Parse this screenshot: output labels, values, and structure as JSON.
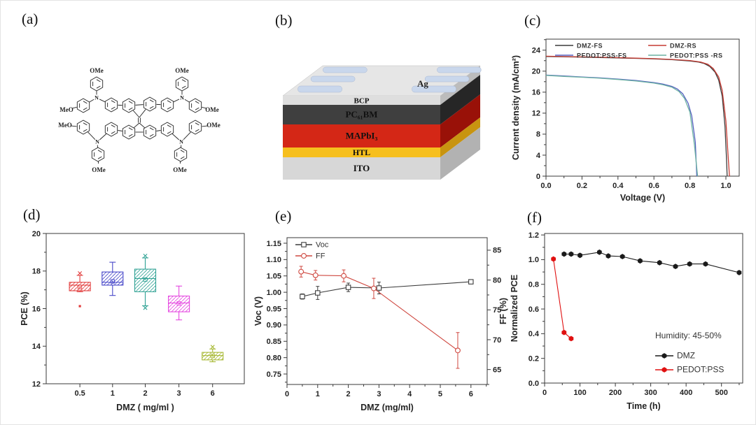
{
  "figure": {
    "panels": {
      "a": {
        "label": "(a)",
        "atom_labels": {
          "m1": "OMe",
          "m2": "MeO",
          "m3": "OMe",
          "m4": "OMe",
          "m5": "MeO",
          "m6": "OMe",
          "m7": "OMe",
          "m8": "OMe",
          "n": "N"
        }
      },
      "b": {
        "label": "(b)",
        "electrode": "Ag",
        "top_color": "#e6e6e6",
        "pad_color": "#c9d7ec",
        "layers": [
          {
            "name": "BCP",
            "color": "#dedede",
            "side": "#bcbcbc"
          },
          {
            "name": "PC₆₁BM",
            "color": "#3f3f3f",
            "side": "#262626"
          },
          {
            "name": "MAPbI₃",
            "color": "#d42716",
            "side": "#991108"
          },
          {
            "name": "HTL",
            "color": "#f6bf1e",
            "side": "#c89410"
          },
          {
            "name": "ITO",
            "color": "#d7d7d7",
            "side": "#b2b2b2"
          }
        ]
      },
      "c": {
        "label": "(c)"
      },
      "d": {
        "label": "(d)"
      },
      "e": {
        "label": "(e)"
      },
      "f": {
        "label": "(f)"
      }
    }
  },
  "chart_data": [
    {
      "id": "c",
      "type": "line",
      "xlabel": "Voltage (V)",
      "ylabel": "Current density (mA/cm²)",
      "xlim": [
        0,
        1.074
      ],
      "ylim": [
        0,
        26.1
      ],
      "xticks": [
        0,
        0.2,
        0.4,
        0.6,
        0.8,
        1.0
      ],
      "xtick_labels": [
        "0.0",
        "0.2",
        "0.4",
        "0.6",
        "0.8",
        "1.0"
      ],
      "yticks": [
        0,
        4,
        8,
        12,
        16,
        20,
        24
      ],
      "ytick_labels": [
        "0",
        "4",
        "8",
        "12",
        "16",
        "20",
        "24"
      ],
      "legend": true,
      "series": [
        {
          "name": "DMZ-FS",
          "color": "#3c3c3c",
          "points": [
            [
              0,
              22.8
            ],
            [
              0.1,
              22.75
            ],
            [
              0.2,
              22.68
            ],
            [
              0.3,
              22.6
            ],
            [
              0.4,
              22.52
            ],
            [
              0.5,
              22.44
            ],
            [
              0.6,
              22.34
            ],
            [
              0.7,
              22.18
            ],
            [
              0.8,
              21.95
            ],
            [
              0.85,
              21.72
            ],
            [
              0.88,
              21.45
            ],
            [
              0.91,
              20.9
            ],
            [
              0.94,
              19.8
            ],
            [
              0.96,
              18.3
            ],
            [
              0.98,
              15.2
            ],
            [
              0.995,
              9.5
            ],
            [
              1.003,
              3.5
            ],
            [
              1.007,
              0
            ]
          ]
        },
        {
          "name": "DMZ-RS",
          "color": "#c53a32",
          "points": [
            [
              0,
              22.85
            ],
            [
              0.1,
              22.78
            ],
            [
              0.2,
              22.72
            ],
            [
              0.3,
              22.65
            ],
            [
              0.4,
              22.57
            ],
            [
              0.5,
              22.48
            ],
            [
              0.6,
              22.38
            ],
            [
              0.7,
              22.24
            ],
            [
              0.8,
              22.02
            ],
            [
              0.86,
              21.75
            ],
            [
              0.9,
              21.3
            ],
            [
              0.93,
              20.5
            ],
            [
              0.96,
              18.9
            ],
            [
              0.98,
              16.3
            ],
            [
              1.0,
              10.5
            ],
            [
              1.012,
              4
            ],
            [
              1.02,
              0
            ]
          ]
        },
        {
          "name": "PEDOT:PSS-FS",
          "color": "#5560c0",
          "points": [
            [
              0,
              19.25
            ],
            [
              0.1,
              19.08
            ],
            [
              0.2,
              18.9
            ],
            [
              0.3,
              18.72
            ],
            [
              0.4,
              18.5
            ],
            [
              0.5,
              18.22
            ],
            [
              0.6,
              17.82
            ],
            [
              0.65,
              17.55
            ],
            [
              0.7,
              17.1
            ],
            [
              0.73,
              16.6
            ],
            [
              0.76,
              15.7
            ],
            [
              0.79,
              13.9
            ],
            [
              0.81,
              11.5
            ],
            [
              0.83,
              6.5
            ],
            [
              0.838,
              0
            ]
          ]
        },
        {
          "name": "PEDOT:PSS -RS",
          "color": "#6cb2a2",
          "points": [
            [
              0,
              19.2
            ],
            [
              0.1,
              19.0
            ],
            [
              0.2,
              18.84
            ],
            [
              0.3,
              18.65
            ],
            [
              0.4,
              18.42
            ],
            [
              0.5,
              18.12
            ],
            [
              0.6,
              17.72
            ],
            [
              0.65,
              17.42
            ],
            [
              0.7,
              16.95
            ],
            [
              0.74,
              16.1
            ],
            [
              0.77,
              14.8
            ],
            [
              0.8,
              12.2
            ],
            [
              0.825,
              6
            ],
            [
              0.843,
              0
            ]
          ]
        }
      ]
    },
    {
      "id": "d",
      "type": "box",
      "xlabel": "DMZ ( mg/ml )",
      "ylabel": "PCE (%)",
      "ylim": [
        12,
        20
      ],
      "yticks": [
        12,
        14,
        16,
        18,
        20
      ],
      "ytick_labels": [
        "12",
        "14",
        "16",
        "18",
        "20"
      ],
      "categories": [
        "0.5",
        "1",
        "2",
        "3",
        "6"
      ],
      "colors": [
        "#e13b3b",
        "#4646c8",
        "#2fa294",
        "#e548e0",
        "#a6b832"
      ],
      "boxes": [
        {
          "whislo": 16.9,
          "q1": 16.95,
          "med": 17.25,
          "q3": 17.4,
          "whishi": 17.77,
          "mean": 17.15,
          "outliers": [
            16.13
          ],
          "marks": [
            "hi"
          ]
        },
        {
          "whislo": 16.7,
          "q1": 17.25,
          "med": 17.4,
          "q3": 17.95,
          "whishi": 18.47,
          "mean": 17.45,
          "outliers": [],
          "marks": []
        },
        {
          "whislo": 16.15,
          "q1": 16.9,
          "med": 17.6,
          "q3": 18.1,
          "whishi": 18.7,
          "mean": 17.55,
          "outliers": [],
          "marks": [
            "hi",
            "lo"
          ]
        },
        {
          "whislo": 15.4,
          "q1": 15.83,
          "med": 16.3,
          "q3": 16.67,
          "whishi": 17.2,
          "mean": 16.28,
          "outliers": [],
          "marks": []
        },
        {
          "whislo": 13.17,
          "q1": 13.27,
          "med": 13.5,
          "q3": 13.67,
          "whishi": 13.85,
          "mean": 13.48,
          "outliers": [],
          "marks": [
            "hi"
          ]
        }
      ]
    },
    {
      "id": "e",
      "type": "line",
      "xlabel": "DMZ (mg/ml)",
      "ylabel": "Voc (V)",
      "ylabel2": "FF (%)",
      "xlim": [
        0,
        6.53
      ],
      "ylim": [
        0.718,
        1.167
      ],
      "ylim2": [
        62.5,
        87.1
      ],
      "xticks": [
        0,
        1,
        2,
        3,
        4,
        5,
        6
      ],
      "xtick_labels": [
        "0",
        "1",
        "2",
        "3",
        "4",
        "5",
        "6"
      ],
      "yticks": [
        0.75,
        0.8,
        0.85,
        0.9,
        0.95,
        1.0,
        1.05,
        1.1,
        1.15
      ],
      "ytick_labels": [
        "0.75",
        "0.80",
        "0.85",
        "0.90",
        "0.95",
        "1.00",
        "1.05",
        "1.10",
        "1.15"
      ],
      "yticks2": [
        65,
        70,
        75,
        80,
        85
      ],
      "ytick2_labels": [
        "65",
        "70",
        "75",
        "80",
        "85"
      ],
      "legend": true,
      "series": [
        {
          "name": "Voc",
          "color": "#3c3c3c",
          "marker": "osquare",
          "axis": "left",
          "x": [
            0.5,
            1,
            2,
            3,
            6
          ],
          "y": [
            0.987,
            0.998,
            1.015,
            1.013,
            1.032
          ],
          "yerr": [
            0.008,
            0.02,
            0.013,
            0.018,
            0.004
          ]
        },
        {
          "name": "FF",
          "color": "#cf4840",
          "marker": "ocircle",
          "axis": "right",
          "x": [
            0.46,
            0.93,
            1.85,
            2.83,
            5.57
          ],
          "y": [
            81.4,
            80.8,
            80.7,
            78.6,
            68.2
          ],
          "yerr": [
            0.9,
            0.8,
            1.0,
            1.7,
            3.0
          ]
        }
      ]
    },
    {
      "id": "f",
      "type": "line",
      "xlabel": "Time (h)",
      "ylabel": "Normalized PCE",
      "xlim": [
        0,
        560
      ],
      "ylim": [
        0,
        1.212
      ],
      "xticks": [
        0,
        100,
        200,
        300,
        400,
        500
      ],
      "xtick_labels": [
        "0",
        "100",
        "200",
        "300",
        "400",
        "500"
      ],
      "yticks": [
        0,
        0.2,
        0.4,
        0.6,
        0.8,
        1.0,
        1.2
      ],
      "ytick_labels": [
        "0.0",
        "0.2",
        "0.4",
        "0.6",
        "0.8",
        "1.0",
        "1.2"
      ],
      "legend": true,
      "annotation": "Humidity: 45-50%",
      "series": [
        {
          "name": "DMZ",
          "color": "#1a1a1a",
          "marker": "hex",
          "x": [
            55,
            75,
            100,
            155,
            180,
            220,
            270,
            325,
            370,
            410,
            455,
            550
          ],
          "y": [
            1.045,
            1.045,
            1.035,
            1.06,
            1.03,
            1.025,
            0.99,
            0.975,
            0.945,
            0.965,
            0.965,
            0.895
          ]
        },
        {
          "name": "PEDOT:PSS",
          "color": "#e01010",
          "marker": "hex",
          "x": [
            25,
            55,
            75
          ],
          "y": [
            1.005,
            0.41,
            0.36
          ]
        }
      ]
    }
  ]
}
